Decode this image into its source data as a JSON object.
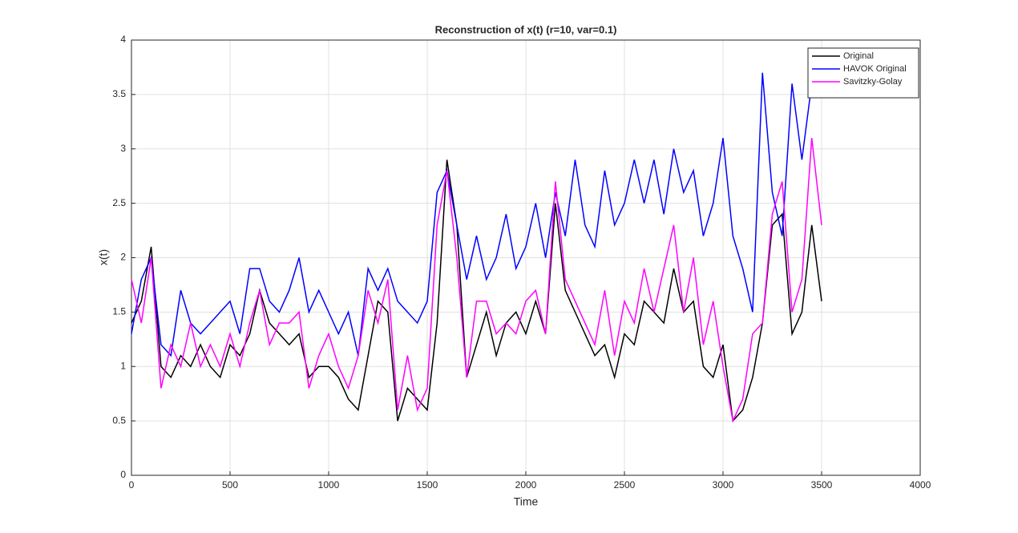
{
  "chart_data": {
    "type": "line",
    "title": "Reconstruction of x(t) (r=10, var=0.1)",
    "xlabel": "Time",
    "ylabel": "x(t)",
    "x": [
      0,
      50,
      100,
      150,
      200,
      250,
      300,
      350,
      400,
      450,
      500,
      550,
      600,
      650,
      700,
      750,
      800,
      850,
      900,
      950,
      1000,
      1050,
      1100,
      1150,
      1200,
      1250,
      1300,
      1350,
      1400,
      1450,
      1500,
      1550,
      1600,
      1650,
      1700,
      1750,
      1800,
      1850,
      1900,
      1950,
      2000,
      2050,
      2100,
      2150,
      2200,
      2250,
      2300,
      2350,
      2400,
      2450,
      2500,
      2550,
      2600,
      2650,
      2700,
      2750,
      2800,
      2850,
      2900,
      2950,
      3000,
      3050,
      3100,
      3150,
      3200,
      3250,
      3300,
      3350,
      3400,
      3450,
      3500
    ],
    "series": [
      {
        "name": "Original",
        "color": "#000000",
        "values": [
          1.4,
          1.6,
          2.1,
          1.0,
          0.9,
          1.1,
          1.0,
          1.2,
          1.0,
          0.9,
          1.2,
          1.1,
          1.3,
          1.7,
          1.4,
          1.3,
          1.2,
          1.3,
          0.9,
          1.0,
          1.0,
          0.9,
          0.7,
          0.6,
          1.1,
          1.6,
          1.5,
          0.5,
          0.8,
          0.7,
          0.6,
          1.4,
          2.9,
          2.3,
          0.9,
          1.2,
          1.5,
          1.1,
          1.4,
          1.5,
          1.3,
          1.6,
          1.3,
          2.5,
          1.7,
          1.5,
          1.3,
          1.1,
          1.2,
          0.9,
          1.3,
          1.2,
          1.6,
          1.5,
          1.4,
          1.9,
          1.5,
          1.6,
          1.0,
          0.9,
          1.2,
          0.5,
          0.6,
          0.9,
          1.4,
          2.3,
          2.4,
          1.3,
          1.5,
          2.3,
          1.6
        ]
      },
      {
        "name": "HAVOK Original",
        "color": "#0000ff",
        "values": [
          1.3,
          1.8,
          2.0,
          1.2,
          1.1,
          1.7,
          1.4,
          1.3,
          1.4,
          1.5,
          1.6,
          1.3,
          1.9,
          1.9,
          1.6,
          1.5,
          1.7,
          2.0,
          1.5,
          1.7,
          1.5,
          1.3,
          1.5,
          1.1,
          1.9,
          1.7,
          1.9,
          1.6,
          1.5,
          1.4,
          1.6,
          2.6,
          2.8,
          2.3,
          1.8,
          2.2,
          1.8,
          2.0,
          2.4,
          1.9,
          2.1,
          2.5,
          2.0,
          2.6,
          2.2,
          2.9,
          2.3,
          2.1,
          2.8,
          2.3,
          2.5,
          2.9,
          2.5,
          2.9,
          2.4,
          3.0,
          2.6,
          2.8,
          2.2,
          2.5,
          3.1,
          2.2,
          1.9,
          1.5,
          3.7,
          2.6,
          2.2,
          3.6,
          2.9,
          3.6,
          3.5
        ]
      },
      {
        "name": "Savitzky-Golay",
        "color": "#ff00ff",
        "values": [
          1.8,
          1.4,
          2.0,
          0.8,
          1.2,
          1.0,
          1.4,
          1.0,
          1.2,
          1.0,
          1.3,
          1.0,
          1.4,
          1.7,
          1.2,
          1.4,
          1.4,
          1.5,
          0.8,
          1.1,
          1.3,
          1.0,
          0.8,
          1.1,
          1.7,
          1.4,
          1.8,
          0.6,
          1.1,
          0.6,
          0.8,
          2.3,
          2.8,
          2.0,
          0.9,
          1.6,
          1.6,
          1.3,
          1.4,
          1.3,
          1.6,
          1.7,
          1.3,
          2.7,
          1.8,
          1.6,
          1.4,
          1.2,
          1.7,
          1.1,
          1.6,
          1.4,
          1.9,
          1.5,
          1.9,
          2.3,
          1.5,
          2.0,
          1.2,
          1.6,
          1.0,
          0.5,
          0.7,
          1.3,
          1.4,
          2.4,
          2.7,
          1.5,
          1.8,
          3.1,
          2.3
        ]
      }
    ],
    "xlim": [
      0,
      4000
    ],
    "xticks": [
      0,
      500,
      1000,
      1500,
      2000,
      2500,
      3000,
      3500,
      4000
    ],
    "ylim": [
      0,
      4
    ],
    "yticks": [
      0,
      0.5,
      1,
      1.5,
      2,
      2.5,
      3,
      3.5,
      4
    ],
    "grid": true,
    "legend": "northeast"
  }
}
